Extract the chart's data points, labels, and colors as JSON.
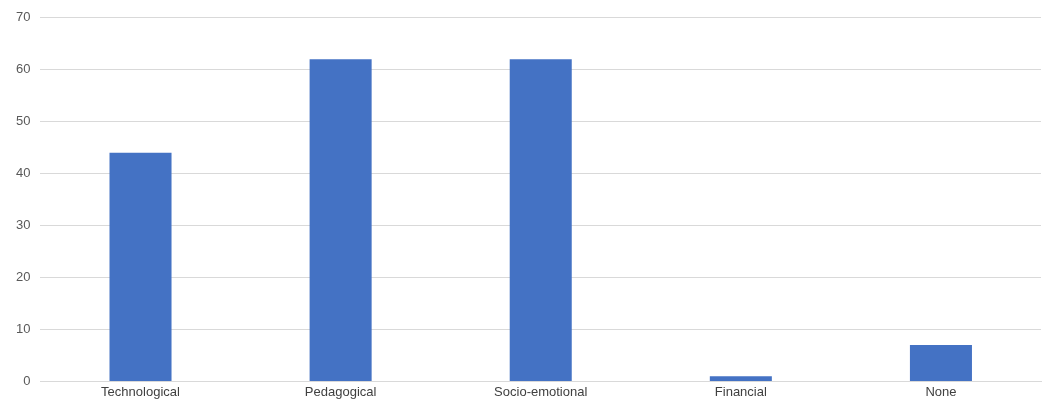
{
  "chart_data": {
    "type": "bar",
    "categories": [
      "Technological",
      "Pedagogical",
      "Socio-emotional",
      "Financial",
      "None"
    ],
    "values": [
      44,
      62,
      62,
      1,
      7
    ],
    "color": "#4472c4",
    "ylim": [
      0,
      70
    ],
    "yticks": [
      0,
      10,
      20,
      30,
      40,
      50,
      60,
      70
    ],
    "grid": "y"
  }
}
